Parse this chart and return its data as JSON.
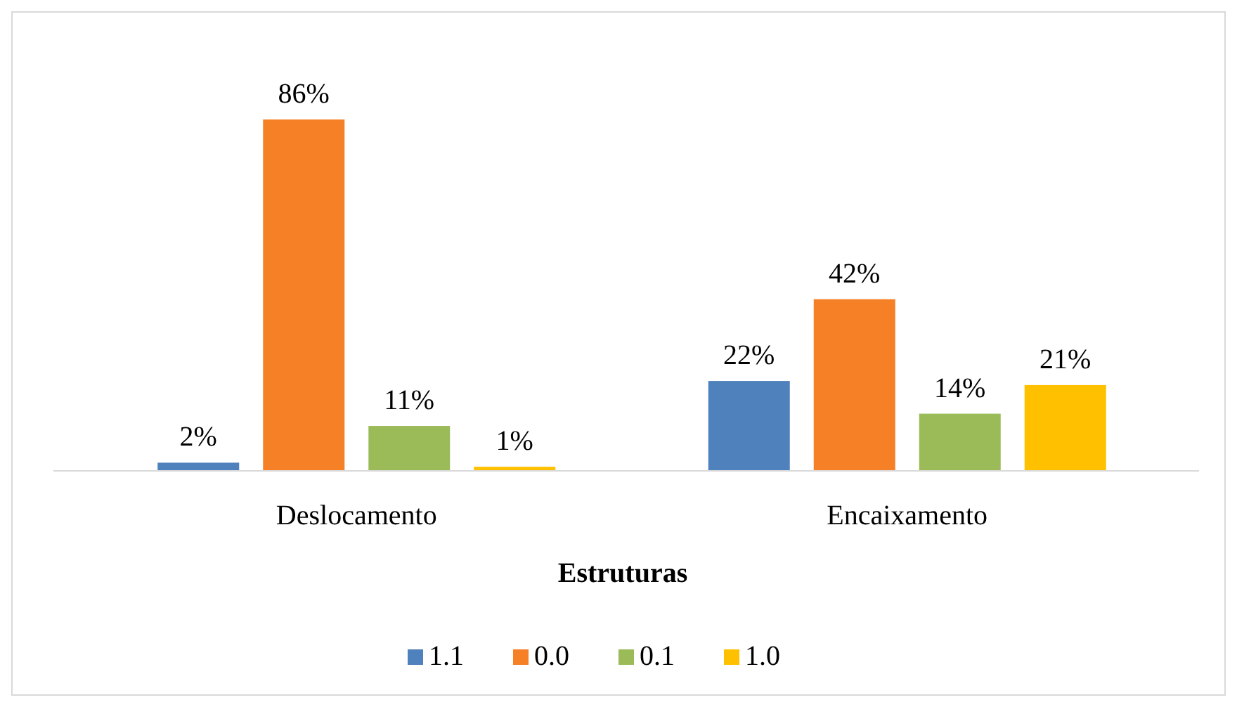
{
  "chart_data": {
    "type": "bar",
    "xlabel": "Estruturas",
    "categories": [
      "Deslocamento",
      "Encaixamento"
    ],
    "series": [
      {
        "name": "1.1",
        "color": "#4f81bd",
        "values": [
          2,
          22
        ],
        "value_labels": [
          "2%",
          "22%"
        ]
      },
      {
        "name": "0.0",
        "color": "#f58025",
        "values": [
          86,
          42
        ],
        "value_labels": [
          "86%",
          "42%"
        ]
      },
      {
        "name": "0.1",
        "color": "#9bbb59",
        "values": [
          11,
          14
        ],
        "value_labels": [
          "11%",
          "14%"
        ]
      },
      {
        "name": "1.0",
        "color": "#ffc000",
        "values": [
          1,
          21
        ],
        "value_labels": [
          "1%",
          "21%"
        ]
      }
    ],
    "legend": "bottom"
  }
}
